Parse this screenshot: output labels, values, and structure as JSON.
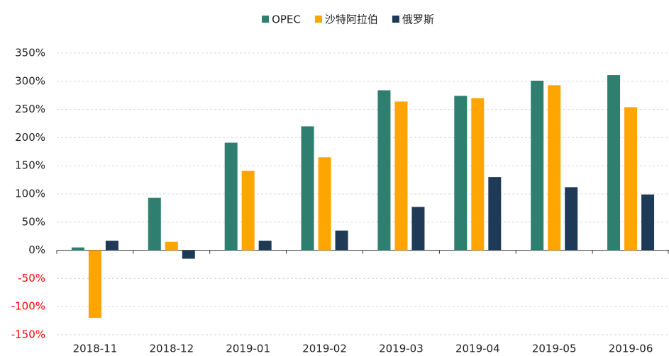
{
  "chart_data": {
    "type": "bar",
    "categories": [
      "2018-11",
      "2018-12",
      "2019-01",
      "2019-02",
      "2019-03",
      "2019-04",
      "2019-05",
      "2019-06"
    ],
    "series": [
      {
        "name": "OPEC",
        "color": "#2e7f6f",
        "values": [
          5,
          93,
          191,
          220,
          284,
          274,
          301,
          311
        ]
      },
      {
        "name": "沙特阿拉伯",
        "color": "#ffa500",
        "values": [
          -120,
          15,
          141,
          165,
          264,
          270,
          293,
          254
        ]
      },
      {
        "name": "俄罗斯",
        "color": "#1f3a56",
        "values": [
          17,
          -15,
          17,
          35,
          77,
          130,
          112,
          99
        ]
      }
    ],
    "ylim": [
      -150,
      350
    ],
    "yticks": [
      {
        "value": -150,
        "label": "-150%"
      },
      {
        "value": -100,
        "label": "-100%"
      },
      {
        "value": -50,
        "label": "-50%"
      },
      {
        "value": 0,
        "label": "0%"
      },
      {
        "value": 50,
        "label": "50%"
      },
      {
        "value": 100,
        "label": "100%"
      },
      {
        "value": 150,
        "label": "150%"
      },
      {
        "value": 200,
        "label": "200%"
      },
      {
        "value": 250,
        "label": "250%"
      },
      {
        "value": 300,
        "label": "300%"
      },
      {
        "value": 350,
        "label": "350%"
      }
    ],
    "grid": true,
    "legend": "top",
    "negative_tick_color": "#ff0000"
  }
}
